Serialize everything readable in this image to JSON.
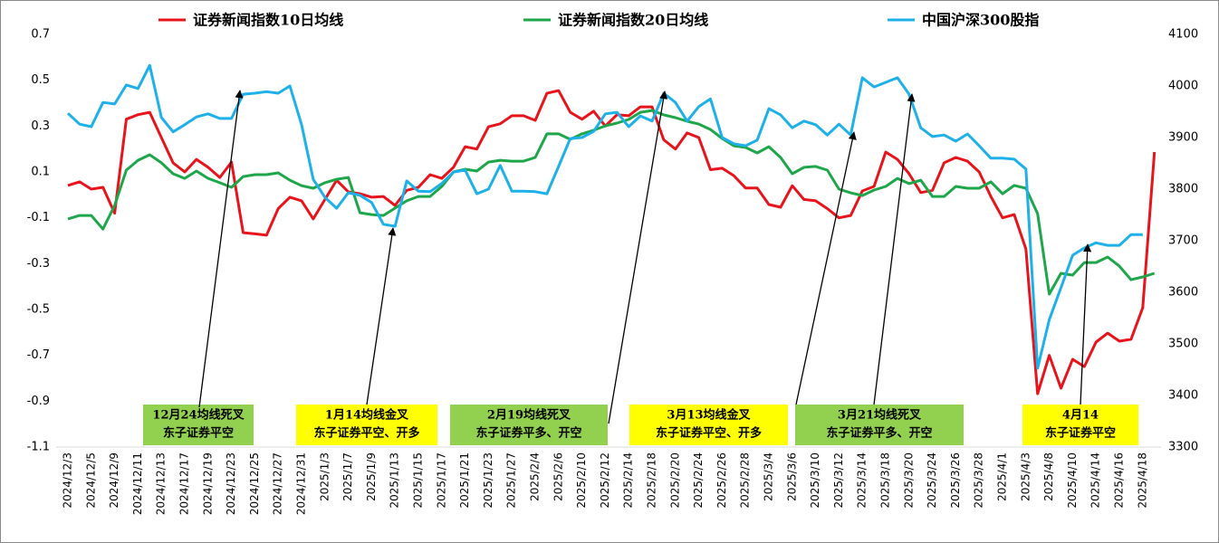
{
  "chart_data": {
    "type": "line",
    "categories": [
      "2024/12/3",
      null,
      "2024/12/5",
      null,
      "2024/12/9",
      null,
      "2024/12/11",
      null,
      "2024/12/13",
      null,
      "2024/12/17",
      null,
      "2024/12/19",
      null,
      "2024/12/23",
      null,
      "2024/12/25",
      null,
      "2024/12/27",
      null,
      "2024/12/31",
      null,
      "2025/1/3",
      null,
      "2025/1/7",
      null,
      "2025/1/9",
      null,
      "2025/1/13",
      null,
      "2025/1/15",
      null,
      "2025/1/17",
      null,
      "2025/1/21",
      null,
      "2025/1/23",
      null,
      "2025/1/27",
      null,
      "2025/2/4",
      null,
      "2025/2/6",
      null,
      "2025/2/10",
      null,
      "2025/2/12",
      null,
      "2025/2/14",
      null,
      "2025/2/18",
      null,
      "2025/2/20",
      null,
      "2025/2/24",
      null,
      "2025/2/26",
      null,
      "2025/2/28",
      null,
      "2025/3/4",
      null,
      "2025/3/6",
      null,
      "2025/3/10",
      null,
      "2025/3/12",
      null,
      "2025/3/14",
      null,
      "2025/3/18",
      null,
      "2025/3/20",
      null,
      "2025/3/24",
      null,
      "2025/3/26",
      null,
      "2025/3/28",
      null,
      "2025/4/1",
      null,
      "2025/4/3",
      null,
      "2025/4/8",
      null,
      "2025/4/10",
      null,
      "2025/4/14",
      null,
      "2025/4/16",
      null,
      "2025/4/18",
      null
    ],
    "series": [
      {
        "name": "证券新闻指数10日均线",
        "color": "#e8141c",
        "values": [
          0.041,
          0.057,
          0.025,
          0.033,
          -0.08,
          0.33,
          0.35,
          0.36,
          0.25,
          0.14,
          0.1,
          0.155,
          0.12,
          0.076,
          0.143,
          -0.165,
          -0.17,
          -0.176,
          -0.06,
          -0.01,
          -0.026,
          -0.105,
          -0.02,
          0.064,
          0.013,
          0.005,
          -0.01,
          -0.007,
          -0.046,
          0.02,
          0.033,
          0.088,
          0.072,
          0.12,
          0.21,
          0.2,
          0.297,
          0.31,
          0.345,
          0.345,
          0.325,
          0.443,
          0.455,
          0.36,
          0.33,
          0.365,
          0.3,
          0.35,
          0.345,
          0.384,
          0.384,
          0.24,
          0.2,
          0.27,
          0.25,
          0.11,
          0.116,
          0.084,
          0.03,
          0.03,
          -0.042,
          -0.054,
          0.04,
          -0.02,
          -0.026,
          -0.06,
          -0.1,
          -0.09,
          0.017,
          0.037,
          0.187,
          0.155,
          0.092,
          0.01,
          0.02,
          0.14,
          0.163,
          0.147,
          0.1,
          -0.007,
          -0.1,
          -0.086,
          -0.236,
          -0.867,
          -0.7,
          -0.843,
          -0.717,
          -0.749,
          -0.642,
          -0.603,
          -0.638,
          -0.63,
          -0.492,
          0.187
        ]
      },
      {
        "name": "证券新闻指数20日均线",
        "color": "#1ea64a",
        "values": [
          -0.105,
          -0.09,
          -0.09,
          -0.149,
          -0.046,
          0.108,
          0.151,
          0.175,
          0.14,
          0.092,
          0.072,
          0.104,
          0.072,
          0.053,
          0.033,
          0.08,
          0.088,
          0.088,
          0.096,
          0.064,
          0.04,
          0.029,
          0.053,
          0.068,
          0.076,
          -0.078,
          -0.086,
          -0.09,
          -0.058,
          -0.026,
          -0.007,
          -0.007,
          0.037,
          0.1,
          0.112,
          0.104,
          0.143,
          0.151,
          0.147,
          0.147,
          0.163,
          0.266,
          0.266,
          0.242,
          0.266,
          0.282,
          0.301,
          0.313,
          0.329,
          0.36,
          0.368,
          0.349,
          0.337,
          0.321,
          0.309,
          0.285,
          0.246,
          0.214,
          0.207,
          0.183,
          0.21,
          0.163,
          0.092,
          0.12,
          0.124,
          0.108,
          0.025,
          0.009,
          -0.003,
          0.021,
          0.037,
          0.072,
          0.049,
          0.064,
          -0.007,
          -0.007,
          0.037,
          0.029,
          0.029,
          0.057,
          0.005,
          0.041,
          0.029,
          -0.082,
          -0.433,
          -0.342,
          -0.35,
          -0.295,
          -0.295,
          -0.271,
          -0.311,
          -0.37,
          -0.358,
          -0.342
        ]
      },
      {
        "name": "中国沪深300股指",
        "color": "#1eb0e8",
        "axis": "y2",
        "values": [
          3947,
          3926,
          3921,
          3968,
          3965,
          4002,
          3995,
          4040,
          3939,
          3911,
          3925,
          3940,
          3946,
          3937,
          3937,
          3984,
          3986,
          3989,
          3986,
          4000,
          3925,
          3819,
          3784,
          3763,
          3793,
          3788,
          3774,
          3732,
          3728,
          3816,
          3796,
          3795,
          3811,
          3833,
          3837,
          3791,
          3800,
          3846,
          3796,
          3796,
          3795,
          3791,
          3844,
          3898,
          3900,
          3912,
          3946,
          3949,
          3921,
          3942,
          3932,
          3986,
          3968,
          3932,
          3960,
          3975,
          3900,
          3888,
          3884,
          3895,
          3956,
          3944,
          3919,
          3932,
          3925,
          3905,
          3926,
          3905,
          4016,
          3998,
          4007,
          4016,
          3984,
          3919,
          3902,
          3905,
          3893,
          3907,
          3884,
          3860,
          3860,
          3858,
          3839,
          3453,
          3547,
          3609,
          3672,
          3686,
          3696,
          3691,
          3691,
          3712,
          3712,
          null
        ]
      }
    ],
    "ylim": [
      -1.1,
      0.7
    ],
    "yticks": [
      0.7,
      0.5,
      0.3,
      0.1,
      -0.1,
      -0.3,
      -0.5,
      -0.7,
      -0.9,
      -1.1
    ],
    "y2lim": [
      3300,
      4100
    ],
    "y2ticks": [
      4100,
      4000,
      3900,
      3800,
      3700,
      3600,
      3500,
      3400,
      3300
    ],
    "grid": false,
    "annotations": [
      {
        "lines": [
          "12月24均线死叉",
          "东子证券平空"
        ],
        "color": "#92d050"
      },
      {
        "lines": [
          "1月14均线金叉",
          "东子证券平空、开多"
        ],
        "color": "#ffff00"
      },
      {
        "lines": [
          "2月19均线死叉",
          "东子证券平多、开空"
        ],
        "color": "#92d050"
      },
      {
        "lines": [
          "3月13均线金叉",
          "东子证券平空、开多"
        ],
        "color": "#ffff00"
      },
      {
        "lines": [
          "3月21均线死叉",
          "东子证券平多、开空"
        ],
        "color": "#92d050"
      },
      {
        "lines": [
          "4月14",
          "东子证券平空"
        ],
        "color": "#ffff00"
      }
    ]
  }
}
